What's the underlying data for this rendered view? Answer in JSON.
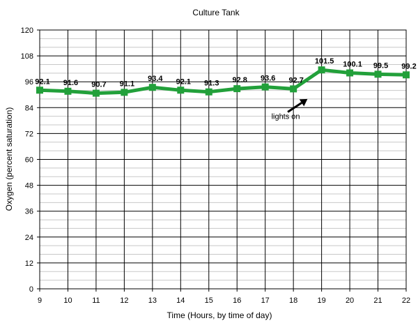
{
  "chart_data": {
    "type": "line",
    "title": "Culture Tank",
    "xlabel": "Time (Hours, by time of day)",
    "ylabel": "Oxygen (percent saturation)",
    "x": [
      9,
      10,
      11,
      12,
      13,
      14,
      15,
      16,
      17,
      18,
      19,
      20,
      21,
      22
    ],
    "values": [
      92.1,
      91.6,
      90.7,
      91.1,
      93.4,
      92.1,
      91.3,
      92.8,
      93.6,
      92.7,
      101.5,
      100.1,
      99.5,
      99.2
    ],
    "data_labels": [
      "92.1",
      "91.6",
      "90.7",
      "91.1",
      "93.4",
      "92.1",
      "91.3",
      "92.8",
      "93.6",
      "92.7",
      "101.5",
      "100.1",
      "99.5",
      "99.2"
    ],
    "x_ticks": [
      "9",
      "10",
      "11",
      "12",
      "13",
      "14",
      "15",
      "16",
      "17",
      "18",
      "19",
      "20",
      "21",
      "22"
    ],
    "y_ticks": [
      "0",
      "12",
      "24",
      "36",
      "48",
      "60",
      "72",
      "84",
      "96",
      "108",
      "120"
    ],
    "xlim": [
      9,
      22
    ],
    "ylim": [
      0,
      120
    ],
    "grid": true,
    "line_color": "#22a03a",
    "marker": "square",
    "annotation": {
      "text": "lights on",
      "arrow_from": [
        17.8,
        82
      ],
      "arrow_to": [
        18.5,
        88
      ]
    }
  }
}
